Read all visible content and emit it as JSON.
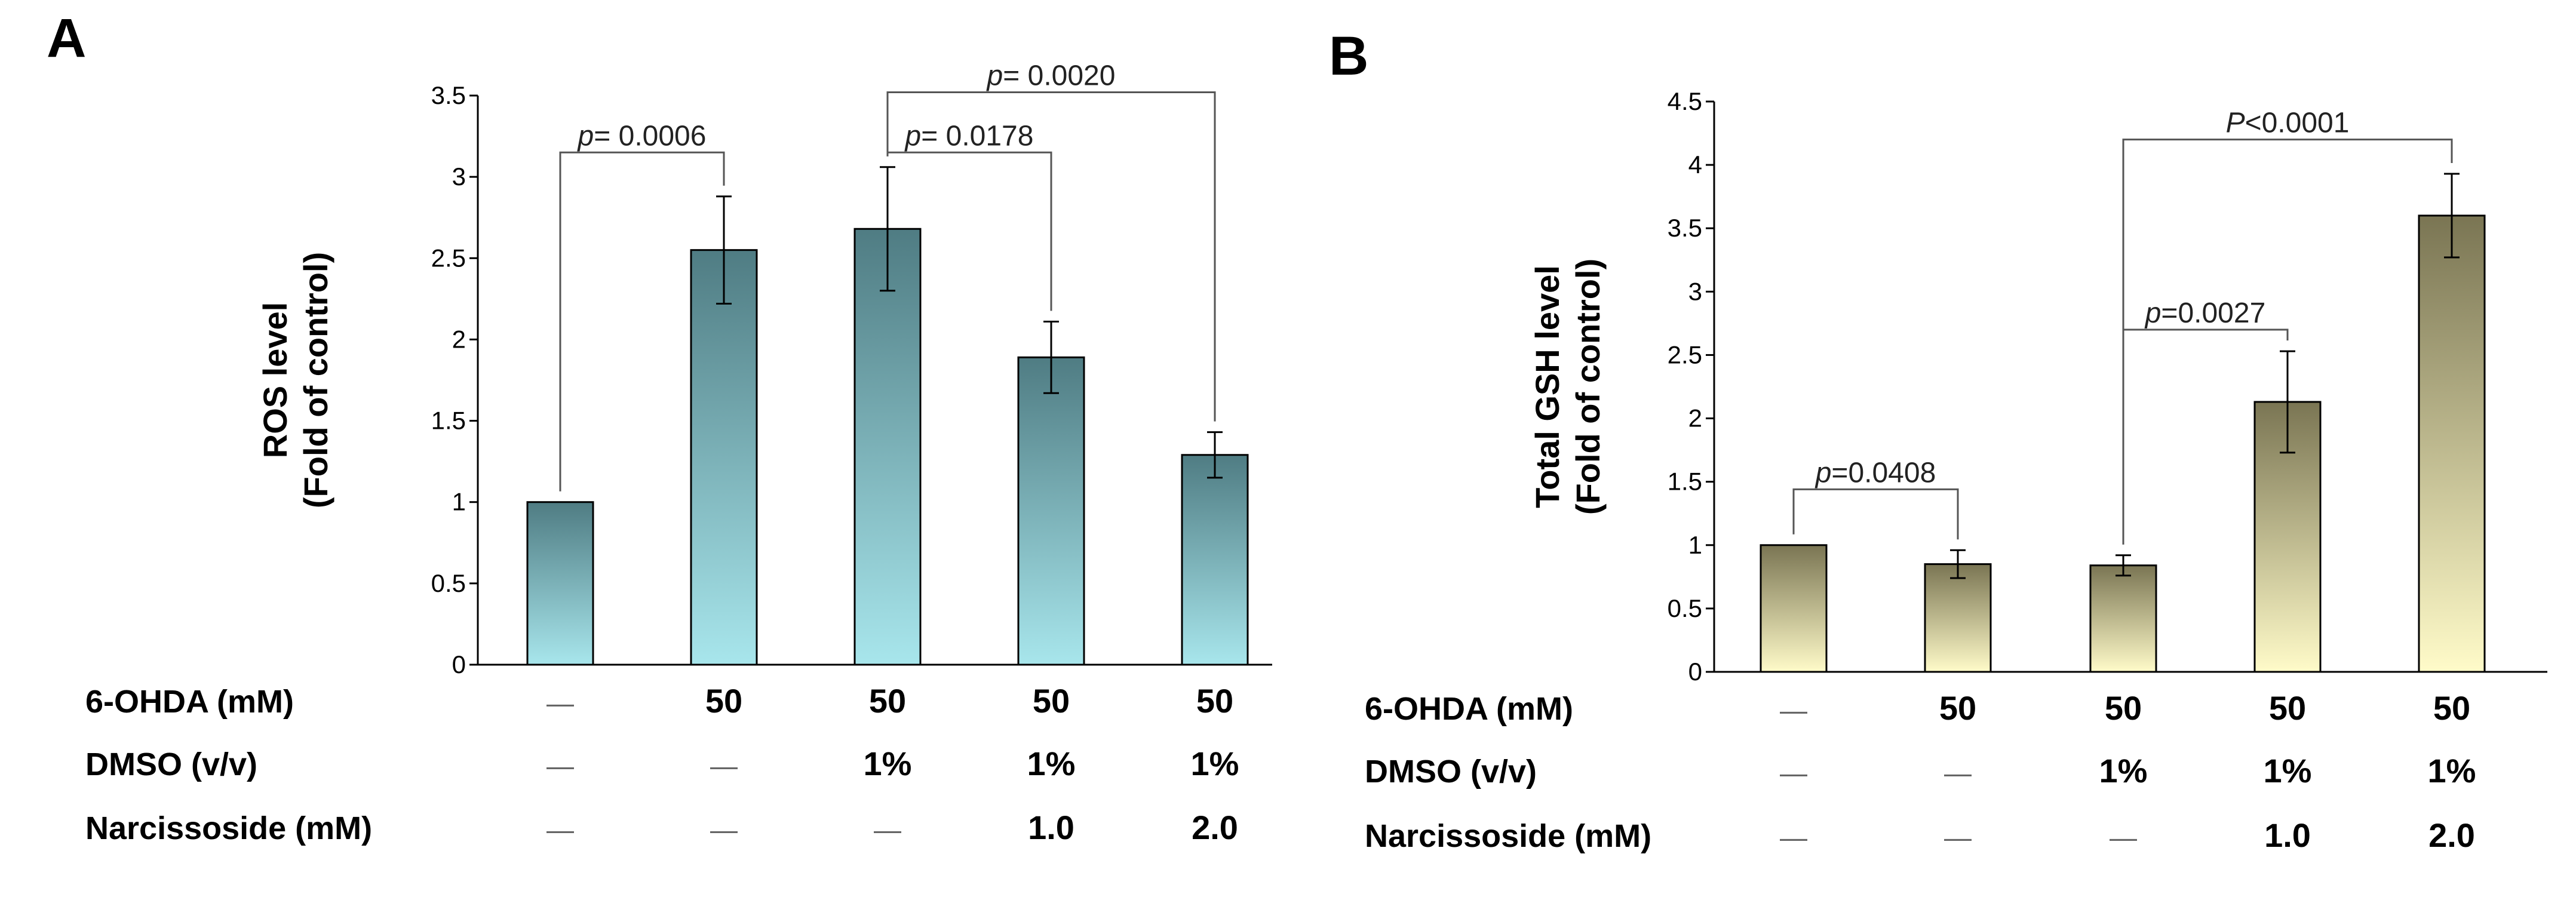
{
  "chart_data": [
    {
      "type": "bar",
      "panel": "A",
      "ylabel": [
        "ROS level",
        "(Fold of control)"
      ],
      "ylim": [
        0,
        3.5
      ],
      "yticks": [
        "0",
        "0.5",
        "1",
        "1.5",
        "2",
        "2.5",
        "3",
        "3.5"
      ],
      "values": [
        1.0,
        2.55,
        2.68,
        1.89,
        1.29
      ],
      "errors": [
        0,
        0.33,
        0.38,
        0.22,
        0.14
      ],
      "gradient": [
        "#4f7c83",
        "#a8e6ec"
      ],
      "significance": [
        {
          "from": 0,
          "to": 1,
          "p_label": "p",
          "p_text": "= 0.0006",
          "level": 3.15
        },
        {
          "from": 2,
          "to": 3,
          "p_label": "p",
          "p_text": "= 0.0178",
          "level": 3.15
        },
        {
          "from": 2,
          "to": 4,
          "p_label": "p",
          "p_text": "= 0.0020",
          "level": 3.52
        }
      ],
      "rows": [
        {
          "label": "6-OHDA (mM)",
          "cells": [
            "—",
            "50",
            "50",
            "50",
            "50"
          ]
        },
        {
          "label": "DMSO (v/v)",
          "cells": [
            "—",
            "—",
            "1%",
            "1%",
            "1%"
          ]
        },
        {
          "label": "Narcissoside  (mM)",
          "cells": [
            "—",
            "—",
            "—",
            "1.0",
            "2.0"
          ]
        }
      ]
    },
    {
      "type": "bar",
      "panel": "B",
      "ylabel": [
        "Total GSH level",
        "(Fold of control)"
      ],
      "ylim": [
        0,
        4.5
      ],
      "yticks": [
        "0",
        "0.5",
        "1",
        "1.5",
        "2",
        "2.5",
        "3",
        "3.5",
        "4",
        "4.5"
      ],
      "values": [
        1.0,
        0.85,
        0.84,
        2.13,
        3.6
      ],
      "errors": [
        0,
        0.11,
        0.08,
        0.4,
        0.33
      ],
      "gradient": [
        "#7a7553",
        "#fffbc9"
      ],
      "significance": [
        {
          "from": 0,
          "to": 1,
          "p_label": "p",
          "p_text": "=0.0408",
          "level": 1.44
        },
        {
          "from": 2,
          "to": 3,
          "p_label": "p",
          "p_text": "=0.0027",
          "level": 2.7
        },
        {
          "from": 2,
          "to": 4,
          "p_label": "P",
          "p_text": "<0.0001",
          "level": 4.2
        }
      ],
      "rows": [
        {
          "label": "6-OHDA (mM)",
          "cells": [
            "—",
            "50",
            "50",
            "50",
            "50"
          ]
        },
        {
          "label": "DMSO (v/v)",
          "cells": [
            "—",
            "—",
            "1%",
            "1%",
            "1%"
          ]
        },
        {
          "label": "Narcissoside  (mM)",
          "cells": [
            "—",
            "—",
            "—",
            "1.0",
            "2.0"
          ]
        }
      ]
    }
  ]
}
